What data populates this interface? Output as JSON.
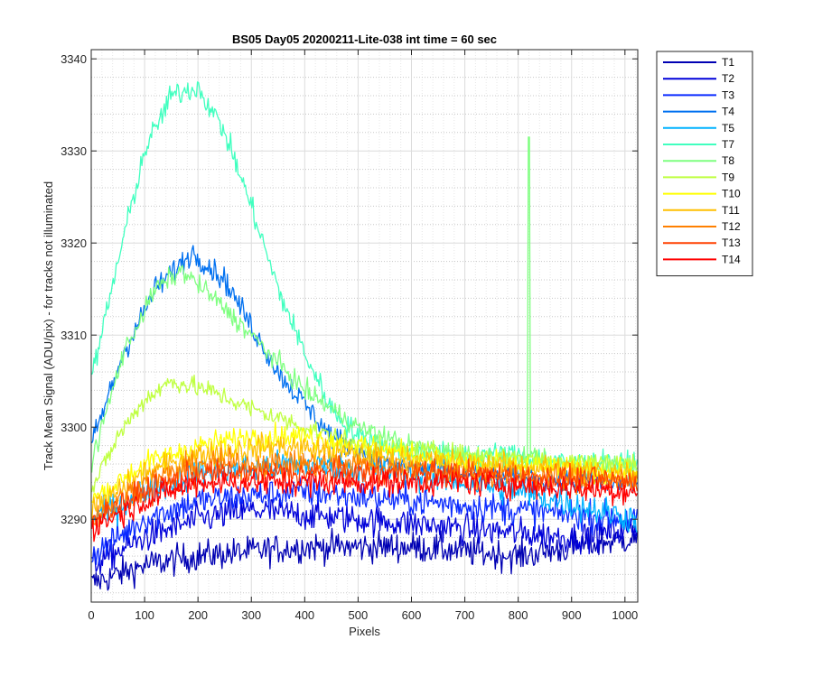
{
  "chart_data": {
    "type": "line",
    "title": "BS05 Day05 20200211-Lite-038 int time = 60 sec",
    "xlabel": "Pixels",
    "ylabel": "Track Mean Signal (ADU/pix) - for tracks not illuminated",
    "xlim": [
      0,
      1024
    ],
    "ylim": [
      3281,
      3341
    ],
    "xticks": [
      0,
      100,
      200,
      300,
      400,
      500,
      600,
      700,
      800,
      900,
      1000
    ],
    "yticks": [
      3290,
      3300,
      3310,
      3320,
      3330,
      3340
    ],
    "grid": true,
    "minor_grid": true,
    "legend_position": "outside-top-right",
    "series": [
      {
        "name": "T1",
        "color": "#0000b3",
        "profile": [
          [
            0,
            3283
          ],
          [
            100,
            3285
          ],
          [
            200,
            3286
          ],
          [
            400,
            3287
          ],
          [
            600,
            3287
          ],
          [
            800,
            3286
          ],
          [
            1020,
            3288
          ]
        ],
        "noise": 1.5,
        "spikes": []
      },
      {
        "name": "T2",
        "color": "#0000d9",
        "profile": [
          [
            0,
            3285
          ],
          [
            100,
            3288
          ],
          [
            200,
            3290
          ],
          [
            300,
            3291
          ],
          [
            500,
            3290
          ],
          [
            700,
            3289
          ],
          [
            900,
            3288
          ],
          [
            1020,
            3289
          ]
        ],
        "noise": 1.5,
        "spikes": []
      },
      {
        "name": "T3",
        "color": "#0a2aff",
        "profile": [
          [
            0,
            3286
          ],
          [
            100,
            3290
          ],
          [
            200,
            3292
          ],
          [
            400,
            3293
          ],
          [
            600,
            3292
          ],
          [
            800,
            3291
          ],
          [
            1020,
            3290
          ]
        ],
        "noise": 1.5,
        "spikes": []
      },
      {
        "name": "T4",
        "color": "#0070f0",
        "profile": [
          [
            0,
            3298
          ],
          [
            60,
            3308
          ],
          [
            120,
            3315
          ],
          [
            190,
            3319
          ],
          [
            250,
            3316
          ],
          [
            350,
            3306
          ],
          [
            450,
            3299
          ],
          [
            550,
            3296
          ],
          [
            700,
            3295
          ],
          [
            900,
            3294
          ],
          [
            1020,
            3294
          ]
        ],
        "noise": 1.2,
        "spikes": []
      },
      {
        "name": "T5",
        "color": "#00b2ff",
        "profile": [
          [
            0,
            3290
          ],
          [
            100,
            3293
          ],
          [
            200,
            3295
          ],
          [
            400,
            3296
          ],
          [
            600,
            3295
          ],
          [
            800,
            3293
          ],
          [
            1020,
            3290
          ]
        ],
        "noise": 1.5,
        "spikes": []
      },
      {
        "name": "T7",
        "color": "#40ffbf",
        "profile": [
          [
            0,
            3305
          ],
          [
            50,
            3318
          ],
          [
            100,
            3330
          ],
          [
            150,
            3336
          ],
          [
            200,
            3337
          ],
          [
            250,
            3332
          ],
          [
            300,
            3324
          ],
          [
            350,
            3315
          ],
          [
            400,
            3308
          ],
          [
            450,
            3302
          ],
          [
            500,
            3299
          ],
          [
            600,
            3297
          ],
          [
            700,
            3297
          ],
          [
            800,
            3297
          ],
          [
            900,
            3296
          ],
          [
            1020,
            3296
          ]
        ],
        "noise": 1.2,
        "spikes": []
      },
      {
        "name": "T8",
        "color": "#7fff80",
        "profile": [
          [
            0,
            3296
          ],
          [
            60,
            3308
          ],
          [
            120,
            3315
          ],
          [
            170,
            3317
          ],
          [
            230,
            3314
          ],
          [
            300,
            3310
          ],
          [
            400,
            3304
          ],
          [
            500,
            3300
          ],
          [
            600,
            3298
          ],
          [
            700,
            3297
          ],
          [
            900,
            3296
          ],
          [
            1020,
            3296
          ]
        ],
        "noise": 1.0,
        "spikes": [
          [
            820,
            3331.5
          ]
        ]
      },
      {
        "name": "T9",
        "color": "#bfff40",
        "profile": [
          [
            0,
            3293
          ],
          [
            50,
            3299
          ],
          [
            100,
            3303
          ],
          [
            150,
            3305
          ],
          [
            220,
            3304
          ],
          [
            300,
            3302
          ],
          [
            400,
            3300
          ],
          [
            500,
            3298
          ],
          [
            700,
            3297
          ],
          [
            1020,
            3296
          ]
        ],
        "noise": 1.0,
        "spikes": []
      },
      {
        "name": "T10",
        "color": "#ffff00",
        "profile": [
          [
            0,
            3292
          ],
          [
            100,
            3296
          ],
          [
            200,
            3298
          ],
          [
            300,
            3299
          ],
          [
            400,
            3299
          ],
          [
            500,
            3298
          ],
          [
            700,
            3296
          ],
          [
            1020,
            3295
          ]
        ],
        "noise": 1.2,
        "spikes": []
      },
      {
        "name": "T11",
        "color": "#ffbf00",
        "profile": [
          [
            0,
            3291
          ],
          [
            100,
            3295
          ],
          [
            200,
            3297
          ],
          [
            350,
            3298
          ],
          [
            500,
            3297
          ],
          [
            700,
            3296
          ],
          [
            1020,
            3295
          ]
        ],
        "noise": 1.3,
        "spikes": []
      },
      {
        "name": "T12",
        "color": "#ff8000",
        "profile": [
          [
            0,
            3290
          ],
          [
            100,
            3294
          ],
          [
            200,
            3296
          ],
          [
            350,
            3296
          ],
          [
            500,
            3296
          ],
          [
            700,
            3295
          ],
          [
            1020,
            3294
          ]
        ],
        "noise": 1.3,
        "spikes": []
      },
      {
        "name": "T13",
        "color": "#ff4000",
        "profile": [
          [
            0,
            3290
          ],
          [
            100,
            3293
          ],
          [
            200,
            3295
          ],
          [
            350,
            3295
          ],
          [
            500,
            3295
          ],
          [
            700,
            3295
          ],
          [
            1020,
            3294
          ]
        ],
        "noise": 1.3,
        "spikes": []
      },
      {
        "name": "T14",
        "color": "#ff0000",
        "profile": [
          [
            0,
            3289
          ],
          [
            100,
            3292
          ],
          [
            200,
            3294
          ],
          [
            350,
            3294
          ],
          [
            500,
            3294
          ],
          [
            700,
            3294
          ],
          [
            1020,
            3293
          ]
        ],
        "noise": 1.3,
        "spikes": []
      }
    ]
  }
}
